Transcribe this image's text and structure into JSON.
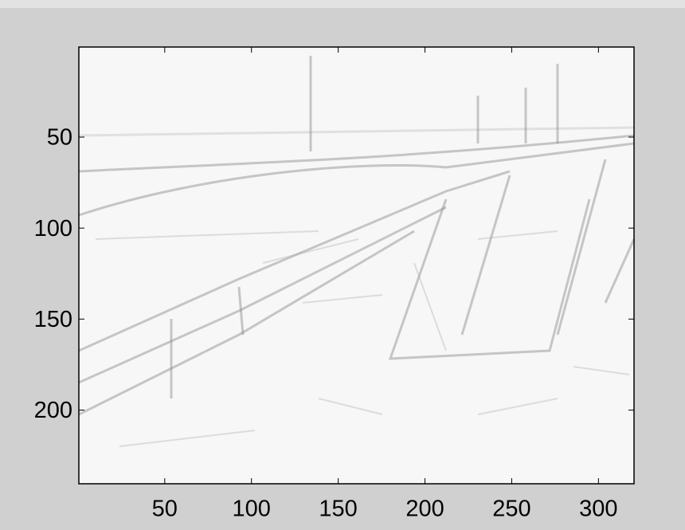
{
  "chart_data": {
    "type": "image",
    "xlim": [
      0.5,
      320.5
    ],
    "ylim": [
      0.5,
      240.5
    ],
    "y_reversed": true,
    "xticks": [
      50,
      100,
      150,
      200,
      250,
      300
    ],
    "yticks": [
      50,
      100,
      150,
      200
    ]
  }
}
